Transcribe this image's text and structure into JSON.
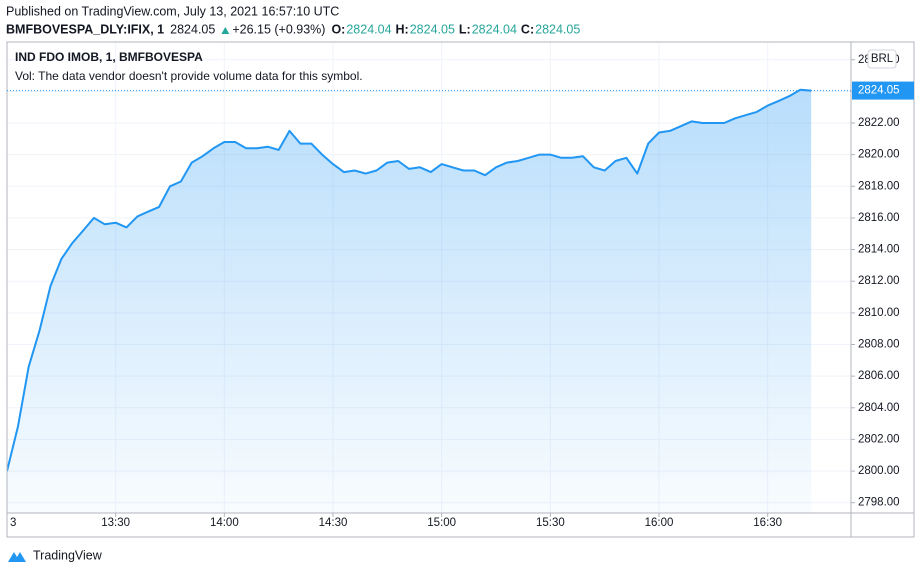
{
  "header": {
    "published": "Published on TradingView.com, July 13, 2021 16:57:10 UTC",
    "symbol": "BMFBOVESPA_DLY:IFIX, 1",
    "price": 2824.05,
    "change": "+26.15 (+0.93%)",
    "ohlc": [
      {
        "label": "O:",
        "value": 2824.04
      },
      {
        "label": "H:",
        "value": 2824.05
      },
      {
        "label": "L:",
        "value": 2824.04
      },
      {
        "label": "C:",
        "value": 2824.05
      }
    ]
  },
  "chart_data": {
    "type": "area",
    "title": "IND FDO IMOB, 1, BMFBOVESPA",
    "subtitle": "Vol: The data vendor doesn't provide volume data for this symbol.",
    "currency": "BRL",
    "color": "#2196f3",
    "grid": true,
    "x": [
      "13:00",
      "13:03",
      "13:06",
      "13:09",
      "13:12",
      "13:15",
      "13:18",
      "13:21",
      "13:24",
      "13:27",
      "13:30",
      "13:33",
      "13:36",
      "13:39",
      "13:42",
      "13:45",
      "13:48",
      "13:51",
      "13:54",
      "13:57",
      "14:00",
      "14:03",
      "14:06",
      "14:09",
      "14:12",
      "14:15",
      "14:18",
      "14:21",
      "14:24",
      "14:27",
      "14:30",
      "14:33",
      "14:36",
      "14:39",
      "14:42",
      "14:45",
      "14:48",
      "14:51",
      "14:54",
      "14:57",
      "15:00",
      "15:03",
      "15:06",
      "15:09",
      "15:12",
      "15:15",
      "15:18",
      "15:21",
      "15:24",
      "15:27",
      "15:30",
      "15:33",
      "15:36",
      "15:39",
      "15:42",
      "15:45",
      "15:48",
      "15:51",
      "15:54",
      "15:57",
      "16:00",
      "16:03",
      "16:06",
      "16:09",
      "16:12",
      "16:15",
      "16:18",
      "16:21",
      "16:24",
      "16:27",
      "16:30",
      "16:33",
      "16:36",
      "16:39",
      "16:42"
    ],
    "values": [
      2800.0,
      2802.8,
      2806.6,
      2808.9,
      2811.7,
      2813.4,
      2814.4,
      2815.2,
      2816.0,
      2815.6,
      2815.7,
      2815.4,
      2816.1,
      2816.4,
      2816.7,
      2818.0,
      2818.3,
      2819.5,
      2819.9,
      2820.4,
      2820.8,
      2820.8,
      2820.4,
      2820.4,
      2820.5,
      2820.3,
      2821.5,
      2820.7,
      2820.7,
      2820.0,
      2819.4,
      2818.9,
      2819.0,
      2818.8,
      2819.0,
      2819.5,
      2819.6,
      2819.1,
      2819.2,
      2818.9,
      2819.4,
      2819.2,
      2819.0,
      2819.0,
      2818.7,
      2819.2,
      2819.5,
      2819.6,
      2819.8,
      2820.0,
      2820.0,
      2819.8,
      2819.8,
      2819.9,
      2819.2,
      2819.0,
      2819.6,
      2819.8,
      2818.8,
      2820.7,
      2821.4,
      2821.5,
      2821.8,
      2822.1,
      2822.0,
      2822.0,
      2822.0,
      2822.3,
      2822.5,
      2822.7,
      2823.1,
      2823.4,
      2823.7,
      2824.1,
      2824.05
    ],
    "xlim": [
      "13:00",
      "16:53"
    ],
    "xticks": [
      {
        "value": "13:00",
        "label": "3"
      },
      "13:30",
      "14:00",
      "14:30",
      "15:00",
      "15:30",
      "16:00",
      "16:30"
    ],
    "ylim": [
      2797.35,
      2827.12
    ],
    "yticks": [
      {
        "value": 2798,
        "label": "2798.00"
      },
      {
        "value": 2800,
        "label": "2800.00"
      },
      {
        "value": 2802,
        "label": "2802.00"
      },
      {
        "value": 2804,
        "label": "2804.00"
      },
      {
        "value": 2806,
        "label": "2806.00"
      },
      {
        "value": 2808,
        "label": "2808.00"
      },
      {
        "value": 2810,
        "label": "2810.00"
      },
      {
        "value": 2812,
        "label": "2812.00"
      },
      {
        "value": 2814,
        "label": "2814.00"
      },
      {
        "value": 2816,
        "label": "2816.00"
      },
      {
        "value": 2818,
        "label": "2818.00"
      },
      {
        "value": 2820,
        "label": "2820.00"
      },
      {
        "value": 2822,
        "label": "2822.00"
      },
      {
        "value": 2824,
        "label": "2824.00"
      },
      {
        "value": 2826,
        "label": "2826.00"
      }
    ]
  },
  "footer": "TradingView"
}
